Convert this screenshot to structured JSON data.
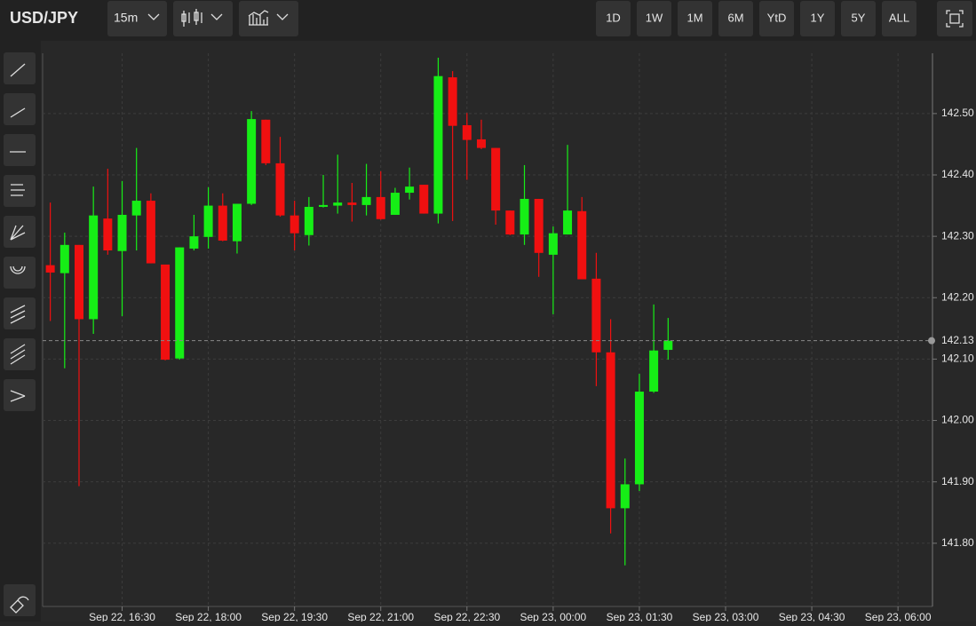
{
  "toolbar": {
    "symbol": "USD/JPY",
    "interval": "15m",
    "ranges": [
      "1D",
      "1W",
      "1M",
      "6M",
      "YtD",
      "1Y",
      "5Y",
      "ALL"
    ]
  },
  "chart_data": {
    "type": "candlestick",
    "x": [
      "Sep 22, 15:15",
      "Sep 22, 15:30",
      "Sep 22, 15:45",
      "Sep 22, 16:00",
      "Sep 22, 16:15",
      "Sep 22, 16:30",
      "Sep 22, 16:45",
      "Sep 22, 17:00",
      "Sep 22, 17:15",
      "Sep 22, 17:30",
      "Sep 22, 17:45",
      "Sep 22, 18:00",
      "Sep 22, 18:15",
      "Sep 22, 18:30",
      "Sep 22, 18:45",
      "Sep 22, 19:00",
      "Sep 22, 19:15",
      "Sep 22, 19:30",
      "Sep 22, 19:45",
      "Sep 22, 20:00",
      "Sep 22, 20:15",
      "Sep 22, 20:30",
      "Sep 22, 20:45",
      "Sep 22, 21:00",
      "Sep 22, 21:15",
      "Sep 22, 21:30",
      "Sep 22, 21:45",
      "Sep 22, 22:00",
      "Sep 22, 22:15",
      "Sep 22, 22:30",
      "Sep 22, 22:45",
      "Sep 22, 23:00",
      "Sep 22, 23:15",
      "Sep 22, 23:30",
      "Sep 22, 23:45",
      "Sep 23, 00:00",
      "Sep 23, 00:15",
      "Sep 23, 00:30",
      "Sep 23, 00:45",
      "Sep 23, 01:00",
      "Sep 23, 01:15",
      "Sep 23, 01:30",
      "Sep 23, 01:45",
      "Sep 23, 02:00"
    ],
    "open": [
      142.253,
      142.24,
      142.286,
      142.165,
      142.329,
      142.276,
      142.334,
      142.358,
      142.254,
      142.101,
      142.28,
      142.299,
      142.35,
      142.292,
      142.353,
      142.49,
      142.419,
      142.334,
      142.302,
      142.348,
      142.35,
      142.355,
      142.351,
      142.364,
      142.335,
      142.371,
      142.384,
      142.337,
      142.559,
      142.481,
      142.458,
      142.444,
      142.342,
      142.303,
      142.361,
      142.27,
      142.303,
      142.341,
      142.231,
      142.111,
      141.857,
      141.896,
      142.047,
      142.115
    ],
    "high": [
      142.355,
      142.306,
      142.286,
      142.381,
      142.41,
      142.39,
      142.444,
      142.37,
      142.254,
      142.282,
      142.335,
      142.38,
      142.37,
      142.353,
      142.504,
      142.49,
      142.462,
      142.358,
      142.364,
      142.4,
      142.433,
      142.387,
      142.418,
      142.406,
      142.379,
      142.412,
      142.384,
      142.591,
      142.569,
      142.501,
      142.49,
      142.444,
      142.342,
      142.416,
      142.361,
      142.316,
      142.449,
      142.364,
      142.273,
      142.165,
      141.938,
      142.076,
      142.189,
      142.167
    ],
    "low": [
      142.162,
      142.085,
      141.893,
      142.141,
      142.27,
      142.17,
      142.277,
      142.256,
      142.098,
      142.099,
      142.277,
      142.28,
      142.292,
      142.272,
      142.351,
      142.416,
      142.332,
      142.277,
      142.285,
      142.347,
      142.337,
      142.324,
      142.334,
      142.327,
      142.335,
      142.36,
      142.337,
      142.321,
      142.325,
      142.392,
      142.442,
      142.319,
      142.302,
      142.286,
      142.234,
      142.173,
      142.303,
      142.23,
      142.056,
      141.816,
      141.764,
      141.885,
      142.045,
      142.099
    ],
    "close": [
      142.241,
      142.286,
      142.165,
      142.334,
      142.277,
      142.335,
      142.358,
      142.256,
      142.099,
      142.282,
      142.3,
      142.35,
      142.293,
      142.353,
      142.491,
      142.419,
      142.334,
      142.305,
      142.348,
      142.351,
      142.355,
      142.351,
      142.364,
      142.328,
      142.371,
      142.381,
      142.337,
      142.561,
      142.48,
      142.457,
      142.444,
      142.342,
      142.303,
      142.361,
      142.273,
      142.305,
      142.342,
      142.23,
      142.111,
      141.857,
      141.896,
      142.047,
      142.114,
      142.13
    ],
    "up_color": "#16ee16",
    "down_color": "#f01010",
    "last_price": {
      "value": 142.13,
      "label": "142.13"
    },
    "ylim": [
      141.697,
      142.617
    ],
    "yticks": [
      {
        "value": 141.8,
        "label": "141.80"
      },
      {
        "value": 141.9,
        "label": "141.90"
      },
      {
        "value": 142.0,
        "label": "142.00"
      },
      {
        "value": 142.1,
        "label": "142.10"
      },
      {
        "value": 142.2,
        "label": "142.20"
      },
      {
        "value": 142.3,
        "label": "142.30"
      },
      {
        "value": 142.4,
        "label": "142.40"
      },
      {
        "value": 142.5,
        "label": "142.50"
      }
    ],
    "xlim": [
      "Sep 22, 15:07",
      "Sep 23, 06:36"
    ],
    "xticks": [
      "Sep 22, 16:30",
      "Sep 22, 18:00",
      "Sep 22, 19:30",
      "Sep 22, 21:00",
      "Sep 22, 22:30",
      "Sep 23, 00:00",
      "Sep 23, 01:30",
      "Sep 23, 03:00",
      "Sep 23, 04:30",
      "Sep 23, 06:00"
    ],
    "grid": true
  }
}
